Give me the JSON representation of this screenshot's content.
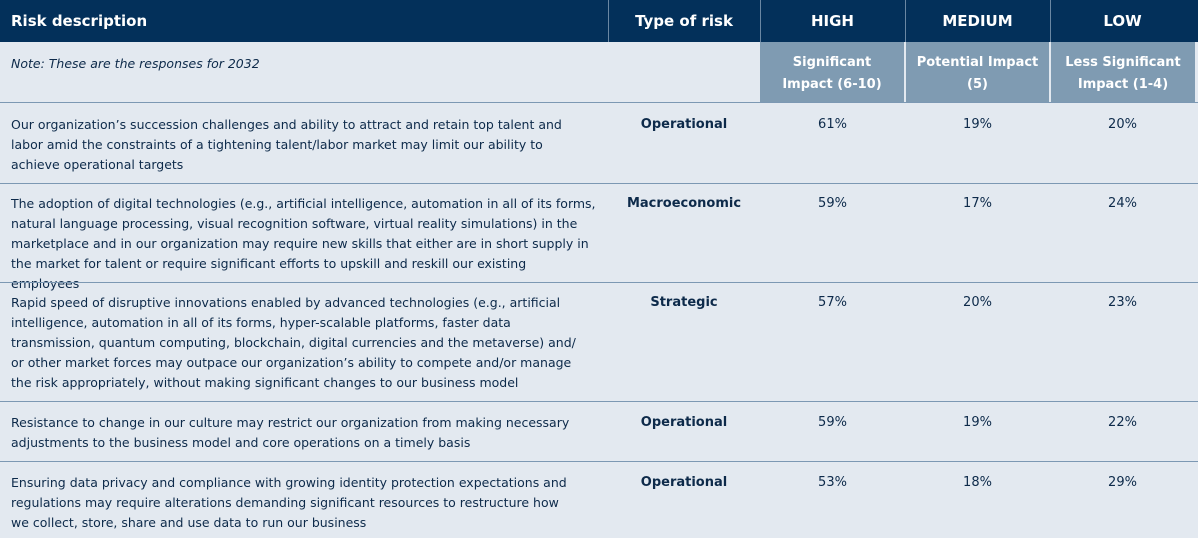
{
  "header": {
    "risk_description": "Risk description",
    "type_of_risk": "Type of risk",
    "high": "HIGH",
    "medium": "MEDIUM",
    "low": "LOW"
  },
  "note": "Note: These are the responses for 2032",
  "subheader": {
    "high": [
      "Significant",
      "Impact (6-10)"
    ],
    "medium": [
      "Potential Impact",
      "(5)"
    ],
    "low": [
      "Less Significant",
      "Impact (1-4)"
    ]
  },
  "rows": [
    {
      "lines": [
        "Our organization’s succession challenges and ability to attract and retain top talent and",
        "labor amid the constraints of a tightening talent/labor market may limit our ability to",
        "achieve operational targets"
      ],
      "type": "Operational",
      "high": "61%",
      "medium": "19%",
      "low": "20%"
    },
    {
      "lines": [
        "The adoption of digital technologies (e.g., artificial intelligence, automation in all of its forms,",
        "natural language processing, visual recognition software, virtual reality simulations) in the",
        "marketplace and in our organization may require new skills that either are in short supply in",
        "the market for talent or require significant efforts to upskill and reskill our existing employees"
      ],
      "type": "Macroeconomic",
      "high": "59%",
      "medium": "17%",
      "low": "24%"
    },
    {
      "lines": [
        "Rapid speed of disruptive innovations enabled by advanced technologies (e.g., artificial",
        "intelligence, automation in all of its forms, hyper-scalable platforms, faster data",
        "transmission, quantum computing, blockchain, digital currencies and the metaverse) and/",
        "or other market forces may outpace our organization’s ability to compete and/or manage",
        "the risk appropriately, without making significant changes to our business model"
      ],
      "type": "Strategic",
      "high": "57%",
      "medium": "20%",
      "low": "23%"
    },
    {
      "lines": [
        "Resistance to change in our culture may restrict our organization from making necessary",
        "adjustments to the business model and core operations on a timely basis"
      ],
      "type": "Operational",
      "high": "59%",
      "medium": "19%",
      "low": "22%"
    },
    {
      "lines": [
        "Ensuring data privacy and compliance with growing identity protection expectations and",
        "regulations may require alterations demanding significant resources to restructure how",
        "we collect, store, share and use data to run our business"
      ],
      "type": "Operational",
      "high": "53%",
      "medium": "18%",
      "low": "29%"
    }
  ]
}
